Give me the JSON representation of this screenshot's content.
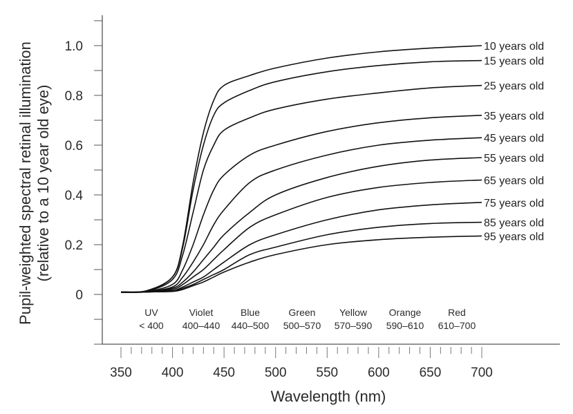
{
  "chart_data": {
    "type": "line",
    "xlabel": "Wavelength (nm)",
    "ylabel": [
      "Pupil-weighted spectral retinal illumination",
      "(relative to a 10 year old eye)"
    ],
    "xlim": [
      350,
      700
    ],
    "ylim": [
      -0.2,
      1.1
    ],
    "xticks": [
      "350",
      "400",
      "450",
      "500",
      "550",
      "600",
      "650",
      "700"
    ],
    "yticks": [
      "0",
      "0.2",
      "0.4",
      "0.6",
      "0.8",
      "1.0"
    ],
    "grid": false,
    "x": [
      350,
      375,
      400,
      410,
      420,
      430,
      440,
      450,
      475,
      500,
      550,
      600,
      650,
      700
    ],
    "series": [
      {
        "name": "10 years old",
        "values": [
          0.01,
          0.015,
          0.07,
          0.2,
          0.45,
          0.65,
          0.78,
          0.84,
          0.88,
          0.91,
          0.95,
          0.975,
          0.99,
          1.0
        ]
      },
      {
        "name": "15 years old",
        "values": [
          0.01,
          0.015,
          0.07,
          0.19,
          0.42,
          0.6,
          0.72,
          0.77,
          0.82,
          0.855,
          0.895,
          0.92,
          0.935,
          0.94
        ]
      },
      {
        "name": "25 years old",
        "values": [
          0.01,
          0.013,
          0.06,
          0.16,
          0.33,
          0.5,
          0.6,
          0.66,
          0.71,
          0.745,
          0.785,
          0.81,
          0.83,
          0.84
        ]
      },
      {
        "name": "35 years old",
        "values": [
          0.01,
          0.012,
          0.04,
          0.1,
          0.2,
          0.32,
          0.42,
          0.48,
          0.56,
          0.6,
          0.655,
          0.69,
          0.71,
          0.72
        ]
      },
      {
        "name": "45 years old",
        "values": [
          0.01,
          0.011,
          0.03,
          0.07,
          0.13,
          0.2,
          0.28,
          0.34,
          0.45,
          0.5,
          0.56,
          0.6,
          0.62,
          0.63
        ]
      },
      {
        "name": "55 years old",
        "values": [
          0.008,
          0.01,
          0.025,
          0.05,
          0.09,
          0.14,
          0.19,
          0.24,
          0.33,
          0.4,
          0.47,
          0.515,
          0.54,
          0.55
        ]
      },
      {
        "name": "65 years old",
        "values": [
          0.008,
          0.01,
          0.02,
          0.04,
          0.07,
          0.1,
          0.14,
          0.18,
          0.27,
          0.32,
          0.39,
          0.43,
          0.45,
          0.46
        ]
      },
      {
        "name": "75 years old",
        "values": [
          0.008,
          0.01,
          0.015,
          0.03,
          0.05,
          0.07,
          0.1,
          0.13,
          0.2,
          0.24,
          0.3,
          0.34,
          0.36,
          0.37
        ]
      },
      {
        "name": "85 years old",
        "values": [
          0.008,
          0.01,
          0.013,
          0.025,
          0.04,
          0.06,
          0.08,
          0.1,
          0.16,
          0.19,
          0.24,
          0.27,
          0.285,
          0.29
        ]
      },
      {
        "name": "95 years old",
        "values": [
          0.008,
          0.01,
          0.012,
          0.02,
          0.035,
          0.05,
          0.07,
          0.09,
          0.13,
          0.16,
          0.2,
          0.22,
          0.23,
          0.235
        ]
      }
    ],
    "bands": [
      {
        "name": "UV",
        "range": "< 400"
      },
      {
        "name": "Violet",
        "range": "400–440"
      },
      {
        "name": "Blue",
        "range": "440–500"
      },
      {
        "name": "Green",
        "range": "500–570"
      },
      {
        "name": "Yellow",
        "range": "570–590"
      },
      {
        "name": "Orange",
        "range": "590–610"
      },
      {
        "name": "Red",
        "range": "610–700"
      }
    ],
    "colors": {
      "line": "#111111",
      "axis": "#555555",
      "text": "#2a2a2a"
    }
  }
}
